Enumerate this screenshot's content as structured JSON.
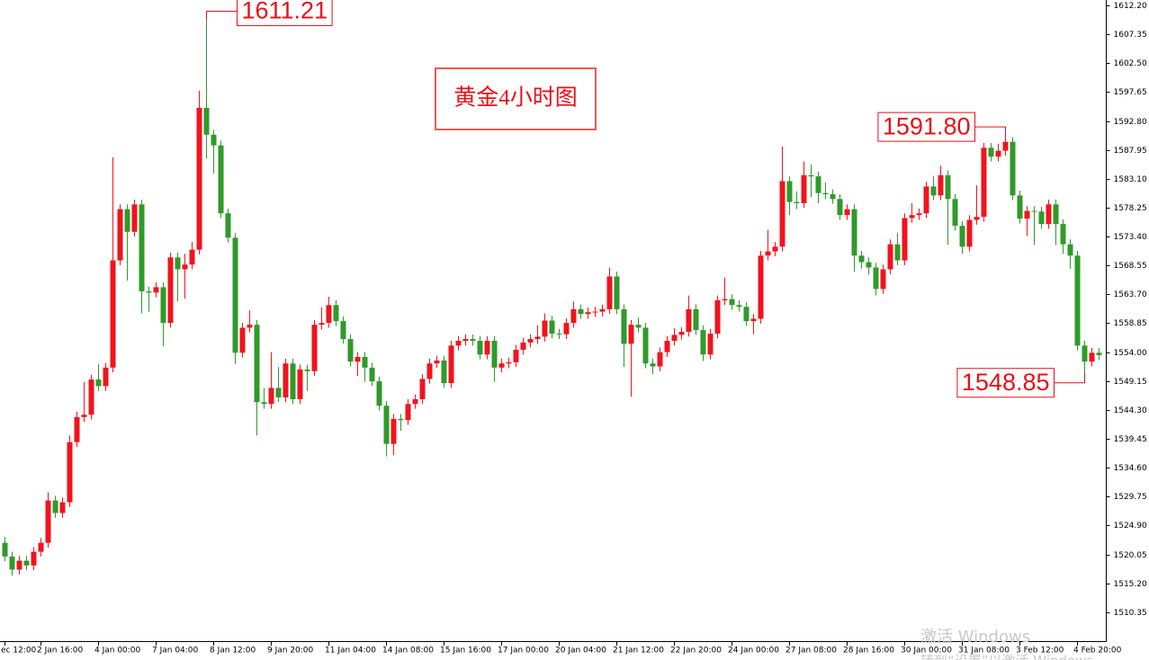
{
  "chart_data": {
    "type": "candlestick",
    "title": "黄金4小时图",
    "watermark": [
      "激活 Windows",
      "转到“设置”以激活 Windows。"
    ],
    "up_color": "#f0141e",
    "down_color": "#2f9a2a",
    "ylim": [
      1505.5,
      1613.1
    ],
    "yticks": [
      {
        "value": 1612.2,
        "label": "1612.20"
      },
      1607.35,
      {
        "value": 1602.5,
        "label": "1602.50"
      },
      1597.65,
      {
        "value": 1592.8,
        "label": "1592.80"
      },
      1587.95,
      {
        "value": 1583.1,
        "label": "1583.10"
      },
      1578.25,
      {
        "value": 1573.4,
        "label": "1573.40"
      },
      1568.55,
      {
        "value": 1563.7,
        "label": "1563.70"
      },
      1558.85,
      {
        "value": 1554,
        "label": "1554.00"
      },
      1549.15,
      {
        "value": 1544.3,
        "label": "1544.30"
      },
      1539.45,
      {
        "value": 1534.6,
        "label": "1534.60"
      },
      1529.75,
      {
        "value": 1524.9,
        "label": "1524.90"
      },
      1520.05,
      {
        "value": 1515.2,
        "label": "1515.20"
      },
      1510.35
    ],
    "annotations": [
      {
        "label": "1611.21",
        "value": 1611.21
      },
      {
        "label": "1591.80",
        "value": 1591.8
      },
      {
        "label": "1548.85",
        "value": 1548.85
      }
    ],
    "categories": [
      "ec 12:00",
      null,
      null,
      null,
      null,
      "2 Jan 16:00",
      null,
      null,
      null,
      null,
      null,
      null,
      null,
      "4 Jan 00:00",
      null,
      null,
      null,
      null,
      null,
      null,
      null,
      "7 Jan 04:00",
      null,
      null,
      null,
      null,
      null,
      null,
      null,
      "8 Jan 12:00",
      null,
      null,
      null,
      null,
      null,
      null,
      null,
      "9 Jan 20:00",
      null,
      null,
      null,
      null,
      null,
      null,
      null,
      "11 Jan 04:00",
      null,
      null,
      null,
      null,
      null,
      null,
      null,
      "14 Jan 08:00",
      null,
      null,
      null,
      null,
      null,
      null,
      null,
      "15 Jan 16:00",
      null,
      null,
      null,
      null,
      null,
      null,
      null,
      "17 Jan 00:00",
      null,
      null,
      null,
      null,
      null,
      null,
      null,
      "20 Jan 04:00",
      null,
      null,
      null,
      null,
      null,
      null,
      null,
      "21 Jan 12:00",
      null,
      null,
      null,
      null,
      null,
      null,
      null,
      "22 Jan 20:00",
      null,
      null,
      null,
      null,
      null,
      null,
      null,
      "24 Jan 00:00",
      null,
      null,
      null,
      null,
      null,
      null,
      null,
      "27 Jan 08:00",
      null,
      null,
      null,
      null,
      null,
      null,
      null,
      "28 Jan 16:00",
      null,
      null,
      null,
      null,
      null,
      null,
      null,
      "30 Jan 00:00",
      null,
      null,
      null,
      null,
      null,
      null,
      null,
      "31 Jan 08:00",
      null,
      null,
      null,
      null,
      null,
      null,
      null,
      "3 Feb 12:00",
      null,
      null,
      null,
      null,
      null,
      null,
      null,
      "4 Feb 20:00",
      null,
      null,
      null
    ],
    "open": [
      1522.0,
      1519.7,
      1517.5,
      1519.0,
      1518.2,
      1520.5,
      1522.0,
      1529.1,
      1527.0,
      1528.8,
      1538.9,
      1543.1,
      1543.5,
      1549.4,
      1548.3,
      1551.4,
      1569.4,
      1578.0,
      1574.2,
      1578.8,
      1564.2,
      1564.0,
      1564.9,
      1558.9,
      1569.9,
      1567.9,
      1568.7,
      1571.2,
      1595.0,
      1590.5,
      1588.7,
      1577.3,
      1573.2,
      1553.9,
      1558.1,
      1558.6,
      1545.6,
      1545.3,
      1548.0,
      1546.4,
      1552.1,
      1546.1,
      1551.1,
      1550.8,
      1558.6,
      1558.9,
      1561.9,
      1559.2,
      1556.2,
      1552.4,
      1553.2,
      1551.4,
      1549.1,
      1545.0,
      1538.6,
      1542.8,
      1542.6,
      1545.3,
      1546.1,
      1549.5,
      1552.1,
      1552.6,
      1548.8,
      1555.1,
      1555.9,
      1556.2,
      1555.9,
      1553.6,
      1555.9,
      1551.4,
      1552.1,
      1552.3,
      1554.4,
      1555.6,
      1556.2,
      1556.6,
      1559.3,
      1557.1,
      1557.0,
      1558.9,
      1561.2,
      1560.4,
      1560.7,
      1560.8,
      1561.2,
      1566.7,
      1561.2,
      1555.4,
      1558.6,
      1558.1,
      1552.1,
      1551.6,
      1554.0,
      1555.9,
      1556.9,
      1557.4,
      1561.2,
      1557.7,
      1553.6,
      1557.1,
      1562.7,
      1562.9,
      1561.9,
      1561.6,
      1559.2,
      1559.6,
      1570.2,
      1570.9,
      1571.7,
      1582.7,
      1579.2,
      1579.0,
      1583.7,
      1583.5,
      1580.7,
      1580.5,
      1579.7,
      1577.0,
      1578.0,
      1570.2,
      1569.1,
      1568.2,
      1564.6,
      1567.9,
      1572.1,
      1569.4,
      1576.5,
      1577.0,
      1577.3,
      1581.8,
      1580.3,
      1583.7,
      1579.7,
      1575.2,
      1571.7,
      1576.2,
      1576.7,
      1588.3,
      1586.8,
      1587.8,
      1589.3,
      1580.3,
      1576.4,
      1577.7,
      1577.6,
      1575.5,
      1578.8,
      1575.5,
      1572.1,
      1570.2,
      1555.1,
      1552.4,
      1553.9
    ],
    "high": [
      1523.0,
      1520.5,
      1519.8,
      1519.8,
      1521.3,
      1522.8,
      1530.5,
      1529.9,
      1529.6,
      1540.0,
      1544.0,
      1549.0,
      1550.2,
      1552.0,
      1552.2,
      1586.7,
      1578.8,
      1578.8,
      1579.6,
      1579.6,
      1565.0,
      1565.7,
      1565.7,
      1570.7,
      1570.7,
      1570.5,
      1572.5,
      1597.9,
      1611.21,
      1591.3,
      1589.5,
      1578.1,
      1574.0,
      1558.9,
      1561.0,
      1559.4,
      1548.0,
      1554.0,
      1551.5,
      1552.9,
      1552.9,
      1551.9,
      1551.9,
      1559.4,
      1561.5,
      1563.3,
      1562.7,
      1560.0,
      1557.0,
      1554.0,
      1554.0,
      1552.2,
      1549.9,
      1545.8,
      1543.6,
      1543.6,
      1546.1,
      1546.9,
      1550.3,
      1552.9,
      1553.4,
      1553.4,
      1555.9,
      1556.7,
      1557.0,
      1557.0,
      1556.7,
      1556.7,
      1556.7,
      1552.9,
      1553.1,
      1555.2,
      1556.4,
      1557.0,
      1558.5,
      1560.5,
      1560.1,
      1557.9,
      1559.7,
      1562.5,
      1562.0,
      1561.5,
      1561.6,
      1562.0,
      1568.2,
      1567.5,
      1562.0,
      1559.4,
      1559.8,
      1558.9,
      1552.9,
      1554.8,
      1556.7,
      1558.0,
      1558.2,
      1563.5,
      1562.0,
      1558.5,
      1557.9,
      1563.5,
      1566.5,
      1563.7,
      1562.7,
      1562.4,
      1560.4,
      1571.0,
      1574.5,
      1572.5,
      1588.5,
      1583.5,
      1581.0,
      1586.0,
      1585.5,
      1584.3,
      1582.5,
      1581.3,
      1580.5,
      1578.8,
      1578.8,
      1571.0,
      1569.9,
      1569.0,
      1568.7,
      1572.9,
      1574.0,
      1577.3,
      1579.0,
      1578.1,
      1582.6,
      1583.5,
      1585.3,
      1584.5,
      1580.5,
      1576.0,
      1577.0,
      1582.0,
      1589.1,
      1589.1,
      1589.0,
      1591.8,
      1590.1,
      1581.1,
      1578.5,
      1578.5,
      1578.4,
      1579.6,
      1579.6,
      1576.3,
      1572.9,
      1571.0,
      1555.9,
      1554.7,
      1554.7
    ],
    "low": [
      1518.9,
      1516.5,
      1516.7,
      1517.4,
      1517.4,
      1519.7,
      1521.2,
      1526.2,
      1526.2,
      1528.0,
      1538.1,
      1542.3,
      1542.7,
      1547.5,
      1547.5,
      1550.6,
      1568.6,
      1566.0,
      1573.4,
      1560.5,
      1560.8,
      1563.2,
      1555.0,
      1558.1,
      1562.5,
      1563.0,
      1567.9,
      1570.4,
      1586.5,
      1584.0,
      1576.5,
      1572.4,
      1552.0,
      1553.1,
      1557.3,
      1540.0,
      1544.5,
      1544.5,
      1545.6,
      1545.6,
      1545.3,
      1545.3,
      1547.5,
      1550.0,
      1557.8,
      1558.1,
      1558.4,
      1555.4,
      1551.6,
      1550.0,
      1549.0,
      1548.3,
      1544.2,
      1536.5,
      1536.7,
      1540.8,
      1541.8,
      1544.5,
      1545.3,
      1548.7,
      1551.3,
      1548.0,
      1548.0,
      1554.3,
      1555.1,
      1555.1,
      1552.8,
      1552.8,
      1549.0,
      1550.6,
      1551.3,
      1551.5,
      1553.6,
      1554.8,
      1555.4,
      1555.8,
      1556.3,
      1556.2,
      1556.2,
      1558.1,
      1559.6,
      1559.6,
      1559.9,
      1560.0,
      1560.4,
      1560.4,
      1551.5,
      1546.5,
      1557.3,
      1551.3,
      1550.3,
      1550.8,
      1553.2,
      1555.1,
      1556.1,
      1556.6,
      1556.9,
      1552.5,
      1552.8,
      1556.3,
      1561.9,
      1561.1,
      1560.8,
      1558.4,
      1557.0,
      1558.8,
      1569.4,
      1570.1,
      1570.9,
      1577.0,
      1578.0,
      1578.2,
      1580.0,
      1579.0,
      1579.7,
      1578.9,
      1576.2,
      1576.2,
      1567.5,
      1568.0,
      1567.0,
      1563.5,
      1563.8,
      1567.1,
      1568.6,
      1568.6,
      1575.7,
      1576.2,
      1576.5,
      1579.5,
      1579.5,
      1572.0,
      1574.4,
      1570.5,
      1570.9,
      1575.4,
      1575.9,
      1586.0,
      1586.0,
      1587.0,
      1579.5,
      1575.6,
      1573.5,
      1572.0,
      1574.7,
      1574.7,
      1572.0,
      1570.5,
      1568.0,
      1554.3,
      1548.85,
      1551.6,
      1552.7
    ],
    "close": [
      1519.7,
      1517.5,
      1519.0,
      1518.2,
      1520.5,
      1522.0,
      1529.1,
      1527.0,
      1528.8,
      1538.9,
      1543.1,
      1543.5,
      1549.4,
      1548.3,
      1551.4,
      1569.4,
      1578.0,
      1574.2,
      1578.8,
      1564.2,
      1564.0,
      1564.9,
      1558.9,
      1569.9,
      1567.9,
      1568.7,
      1571.2,
      1595.0,
      1590.5,
      1588.7,
      1577.3,
      1573.2,
      1553.9,
      1558.1,
      1558.6,
      1545.6,
      1545.3,
      1548.0,
      1546.4,
      1552.1,
      1546.1,
      1551.1,
      1550.8,
      1558.6,
      1558.9,
      1561.9,
      1559.2,
      1556.2,
      1552.4,
      1553.2,
      1551.4,
      1549.1,
      1545.0,
      1538.6,
      1542.8,
      1542.6,
      1545.3,
      1546.1,
      1549.5,
      1552.1,
      1552.6,
      1548.8,
      1555.1,
      1555.9,
      1556.2,
      1555.9,
      1553.6,
      1555.9,
      1551.4,
      1552.1,
      1552.3,
      1554.4,
      1555.6,
      1556.2,
      1556.6,
      1559.3,
      1557.1,
      1557.0,
      1558.9,
      1561.2,
      1560.4,
      1560.7,
      1560.8,
      1561.2,
      1566.7,
      1561.2,
      1555.4,
      1558.6,
      1558.1,
      1552.1,
      1551.6,
      1554.0,
      1555.9,
      1556.9,
      1557.4,
      1561.2,
      1557.7,
      1553.6,
      1557.1,
      1562.7,
      1562.9,
      1561.9,
      1561.6,
      1559.2,
      1559.6,
      1570.2,
      1570.9,
      1571.7,
      1582.7,
      1579.2,
      1579.0,
      1583.7,
      1583.5,
      1580.7,
      1580.5,
      1579.7,
      1577.0,
      1578.0,
      1570.2,
      1569.1,
      1568.2,
      1564.6,
      1567.9,
      1572.1,
      1569.4,
      1576.5,
      1577.0,
      1577.3,
      1581.8,
      1580.3,
      1583.7,
      1579.7,
      1575.2,
      1571.7,
      1576.2,
      1576.7,
      1588.3,
      1586.8,
      1587.8,
      1589.3,
      1580.3,
      1576.4,
      1577.7,
      1577.6,
      1575.5,
      1578.8,
      1575.5,
      1572.1,
      1570.2,
      1555.1,
      1552.4,
      1553.9,
      1553.5
    ]
  }
}
